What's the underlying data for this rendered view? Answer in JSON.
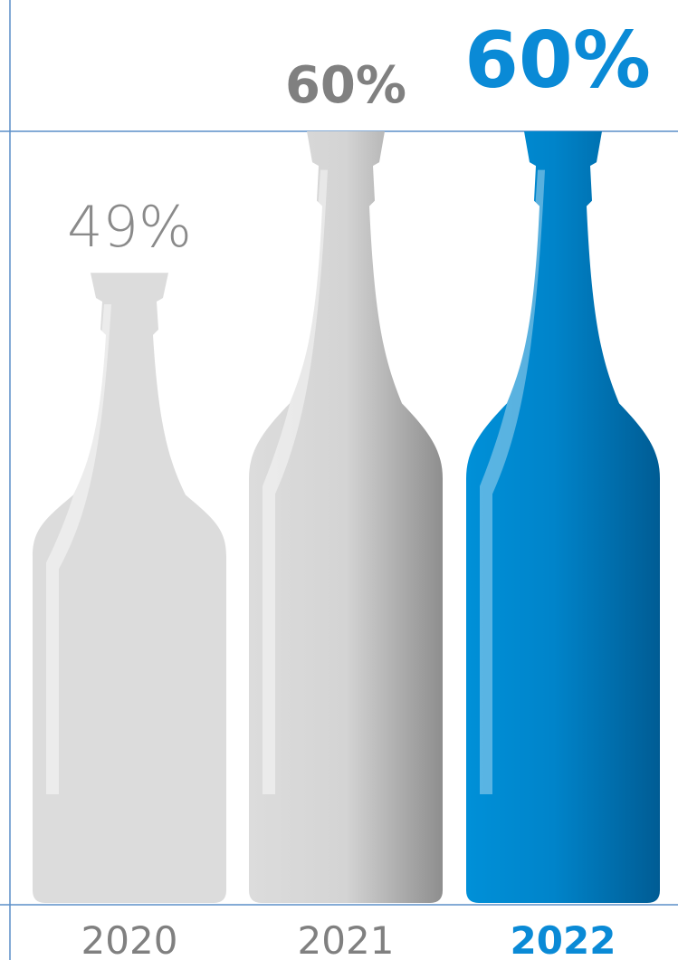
{
  "chart_data": {
    "type": "bar",
    "categories": [
      "2020",
      "2021",
      "2022"
    ],
    "values": [
      49,
      60,
      60
    ],
    "value_labels": [
      "49%",
      "60%",
      "60%"
    ],
    "unit": "%",
    "highlight_category": "2022",
    "colors": {
      "muted_bottle": "#dcdcdc",
      "muted_bottle_shade": "#8e8e8e",
      "highlight_bottle": "#0088d0",
      "highlight_bottle_shade": "#005c94",
      "muted_label": "#808080",
      "highlight_label": "#0a8ad6",
      "guide_line": "#5b8fc9"
    }
  }
}
